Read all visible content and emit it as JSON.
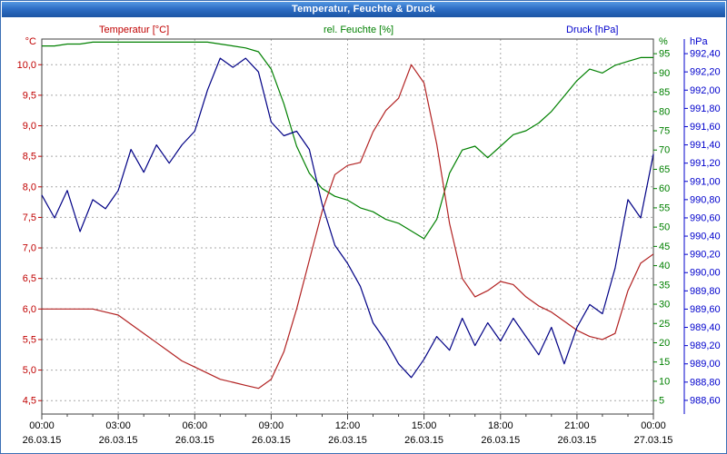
{
  "window": {
    "title": "Temperatur, Feuchte & Druck"
  },
  "legend": {
    "temperature": "Temperatur [°C]",
    "humidity": "rel. Feuchte [%]",
    "pressure": "Druck [hPa]"
  },
  "chart_data": {
    "type": "line",
    "title": "Temperatur, Feuchte & Druck",
    "x_hours_range": [
      0,
      24
    ],
    "grid": "dashed",
    "x_ticks": [
      {
        "hour": 0,
        "time": "00:00",
        "date": "26.03.15"
      },
      {
        "hour": 3,
        "time": "03:00",
        "date": "26.03.15"
      },
      {
        "hour": 6,
        "time": "06:00",
        "date": "26.03.15"
      },
      {
        "hour": 9,
        "time": "09:00",
        "date": "26.03.15"
      },
      {
        "hour": 12,
        "time": "12:00",
        "date": "26.03.15"
      },
      {
        "hour": 15,
        "time": "15:00",
        "date": "26.03.15"
      },
      {
        "hour": 18,
        "time": "18:00",
        "date": "26.03.15"
      },
      {
        "hour": 21,
        "time": "21:00",
        "date": "26.03.15"
      },
      {
        "hour": 24,
        "time": "00:00",
        "date": "27.03.15"
      }
    ],
    "axes": {
      "temp": {
        "unit": "°C",
        "color": "#c00000",
        "side": "left",
        "min": 4.28,
        "max": 10.42,
        "tick_values": [
          10.0,
          9.5,
          9.0,
          8.5,
          8.0,
          7.5,
          7.0,
          6.5,
          6.0,
          5.5,
          5.0,
          4.5
        ],
        "tick_labels": [
          "10,0",
          "9,5",
          "9,0",
          "8,5",
          "8,0",
          "7,5",
          "7,0",
          "6,5",
          "6,0",
          "5,5",
          "5,0",
          "4,5"
        ]
      },
      "humidity": {
        "unit": "%",
        "color": "#008000",
        "side": "right-inner",
        "min": 1.5,
        "max": 98.8,
        "tick_values": [
          95,
          90,
          85,
          80,
          75,
          70,
          65,
          60,
          55,
          50,
          45,
          40,
          35,
          30,
          25,
          20,
          15,
          10,
          5
        ],
        "tick_labels": [
          "95",
          "90",
          "85",
          "80",
          "75",
          "70",
          "65",
          "60",
          "55",
          "50",
          "45",
          "40",
          "35",
          "30",
          "25",
          "20",
          "15",
          "10",
          "5"
        ]
      },
      "pressure": {
        "unit": "hPa",
        "color": "#0000cc",
        "side": "right-outer",
        "min": 988.45,
        "max": 992.56,
        "tick_values": [
          992.4,
          992.2,
          992.0,
          991.8,
          991.6,
          991.4,
          991.2,
          991.0,
          990.8,
          990.6,
          990.4,
          990.2,
          990.0,
          989.8,
          989.6,
          989.4,
          989.2,
          989.0,
          988.8,
          988.6
        ],
        "tick_labels": [
          "992,40",
          "992,20",
          "992,00",
          "991,80",
          "991,60",
          "991,40",
          "991,20",
          "991,00",
          "990,80",
          "990,60",
          "990,40",
          "990,20",
          "990,00",
          "989,80",
          "989,60",
          "989,40",
          "989,20",
          "989,00",
          "988,80",
          "988,60"
        ]
      }
    },
    "series": [
      {
        "id": "humidity-line",
        "name": "rel. Feuchte [%]",
        "axis": "humidity",
        "color": "#008000",
        "sample_interval_minutes": 30,
        "values": [
          97,
          97,
          97.5,
          97.5,
          98,
          98,
          98,
          98,
          98,
          98,
          98,
          98,
          98,
          98,
          97.5,
          97,
          96.5,
          95.5,
          91,
          82,
          71,
          64,
          60,
          58,
          57,
          55,
          54,
          52,
          51,
          49,
          47,
          52,
          64,
          70,
          71,
          68,
          71,
          74,
          75,
          77,
          80,
          84,
          88,
          91,
          90,
          92,
          93,
          94,
          94
        ]
      },
      {
        "id": "temperature-line",
        "name": "Temperatur [°C]",
        "axis": "temp",
        "color": "#b22222",
        "sample_interval_minutes": 30,
        "values": [
          6.0,
          6.0,
          6.0,
          6.0,
          6.0,
          5.95,
          5.9,
          5.75,
          5.6,
          5.45,
          5.3,
          5.15,
          5.05,
          4.95,
          4.85,
          4.8,
          4.75,
          4.7,
          4.85,
          5.3,
          6.0,
          6.8,
          7.6,
          8.2,
          8.35,
          8.4,
          8.9,
          9.25,
          9.45,
          10.0,
          9.7,
          8.7,
          7.4,
          6.5,
          6.2,
          6.3,
          6.45,
          6.4,
          6.2,
          6.05,
          5.95,
          5.8,
          5.65,
          5.55,
          5.5,
          5.6,
          6.3,
          6.75,
          6.9
        ]
      },
      {
        "id": "pressure-line",
        "name": "Druck [hPa]",
        "axis": "pressure",
        "color": "#000085",
        "sample_interval_minutes": 30,
        "values": [
          990.85,
          990.6,
          990.9,
          990.45,
          990.8,
          990.7,
          990.9,
          991.35,
          991.1,
          991.4,
          991.2,
          991.4,
          991.55,
          992.0,
          992.35,
          992.25,
          992.35,
          992.2,
          991.65,
          991.5,
          991.55,
          991.35,
          990.75,
          990.3,
          990.1,
          989.85,
          989.45,
          989.25,
          989.0,
          988.85,
          989.05,
          989.3,
          989.15,
          989.5,
          989.2,
          989.45,
          989.25,
          989.5,
          989.3,
          989.1,
          989.4,
          989.0,
          989.4,
          989.65,
          989.55,
          990.05,
          990.8,
          990.6,
          991.3
        ]
      }
    ]
  }
}
